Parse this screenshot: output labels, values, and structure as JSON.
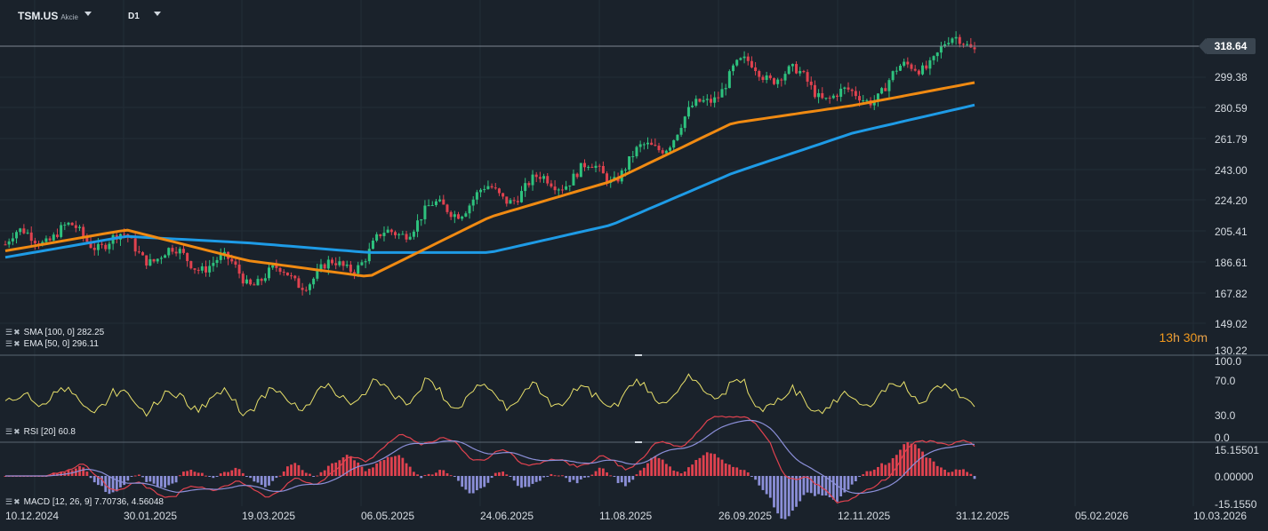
{
  "header": {
    "symbol": "TSM.US",
    "symbol_type": "Akcie",
    "timeframe": "D1"
  },
  "colors": {
    "background": "#1a222b",
    "bull_candle": "#2ec27e",
    "bear_candle": "#e0424f",
    "sma_line": "#1e9be6",
    "ema_line": "#f08a12",
    "rsi_line": "#e8e06a",
    "macd_line": "#e0424f",
    "signal_line": "#8b8fd8",
    "hist_positive": "#e0424f",
    "hist_negative": "#8b8fd8"
  },
  "indicators": {
    "sma": "SMA [100, 0] 282.25",
    "ema": "EMA [50, 0] 296.11",
    "rsi": "RSI [20] 60.8",
    "macd": "MACD [12, 26, 9] 7.70736, 4.56048"
  },
  "countdown": {
    "hours": "13",
    "h": "h",
    "minutes": "30",
    "m": "m"
  },
  "current_price": "318.64",
  "price_axis": [
    "299.38",
    "280.59",
    "261.79",
    "243.00",
    "224.20",
    "205.41",
    "186.61",
    "167.82",
    "149.02",
    "130.22"
  ],
  "rsi_axis": [
    "100.0",
    "70.0",
    "30.0",
    "0.0"
  ],
  "macd_axis": [
    "15.15501",
    "0.00000",
    "-15.1550"
  ],
  "date_axis": [
    "10.12.2024",
    "30.01.2025",
    "19.03.2025",
    "06.05.2025",
    "24.06.2025",
    "11.08.2025",
    "26.09.2025",
    "12.11.2025",
    "31.12.2025",
    "05.02.2026",
    "10.03.2026"
  ],
  "chart_data": {
    "type": "line",
    "series": [
      {
        "name": "SMA [100, 0]",
        "dates": [
          "10.12.2024",
          "30.01.2025",
          "19.03.2025",
          "06.05.2025",
          "24.06.2025",
          "11.08.2025",
          "26.09.2025",
          "12.11.2025",
          "31.12.2025"
        ],
        "values": [
          188,
          201,
          197,
          191,
          191,
          208,
          240,
          265,
          282.25
        ]
      },
      {
        "name": "EMA [50, 0]",
        "dates": [
          "10.12.2024",
          "30.01.2025",
          "19.03.2025",
          "06.05.2025",
          "24.06.2025",
          "11.08.2025",
          "26.09.2025",
          "12.11.2025",
          "31.12.2025"
        ],
        "values": [
          192,
          205,
          186,
          176,
          213,
          235,
          271,
          282,
          296.11
        ]
      },
      {
        "name": "Close",
        "dates": [
          "10.12.2024",
          "30.01.2025",
          "19.03.2025",
          "06.05.2025",
          "24.06.2025",
          "11.08.2025",
          "26.09.2025",
          "12.11.2025",
          "31.12.2025"
        ],
        "values": [
          196,
          201,
          172,
          190,
          232,
          236,
          302,
          290,
          318.64
        ]
      }
    ],
    "ylim": [
      130.22,
      318.64
    ]
  }
}
